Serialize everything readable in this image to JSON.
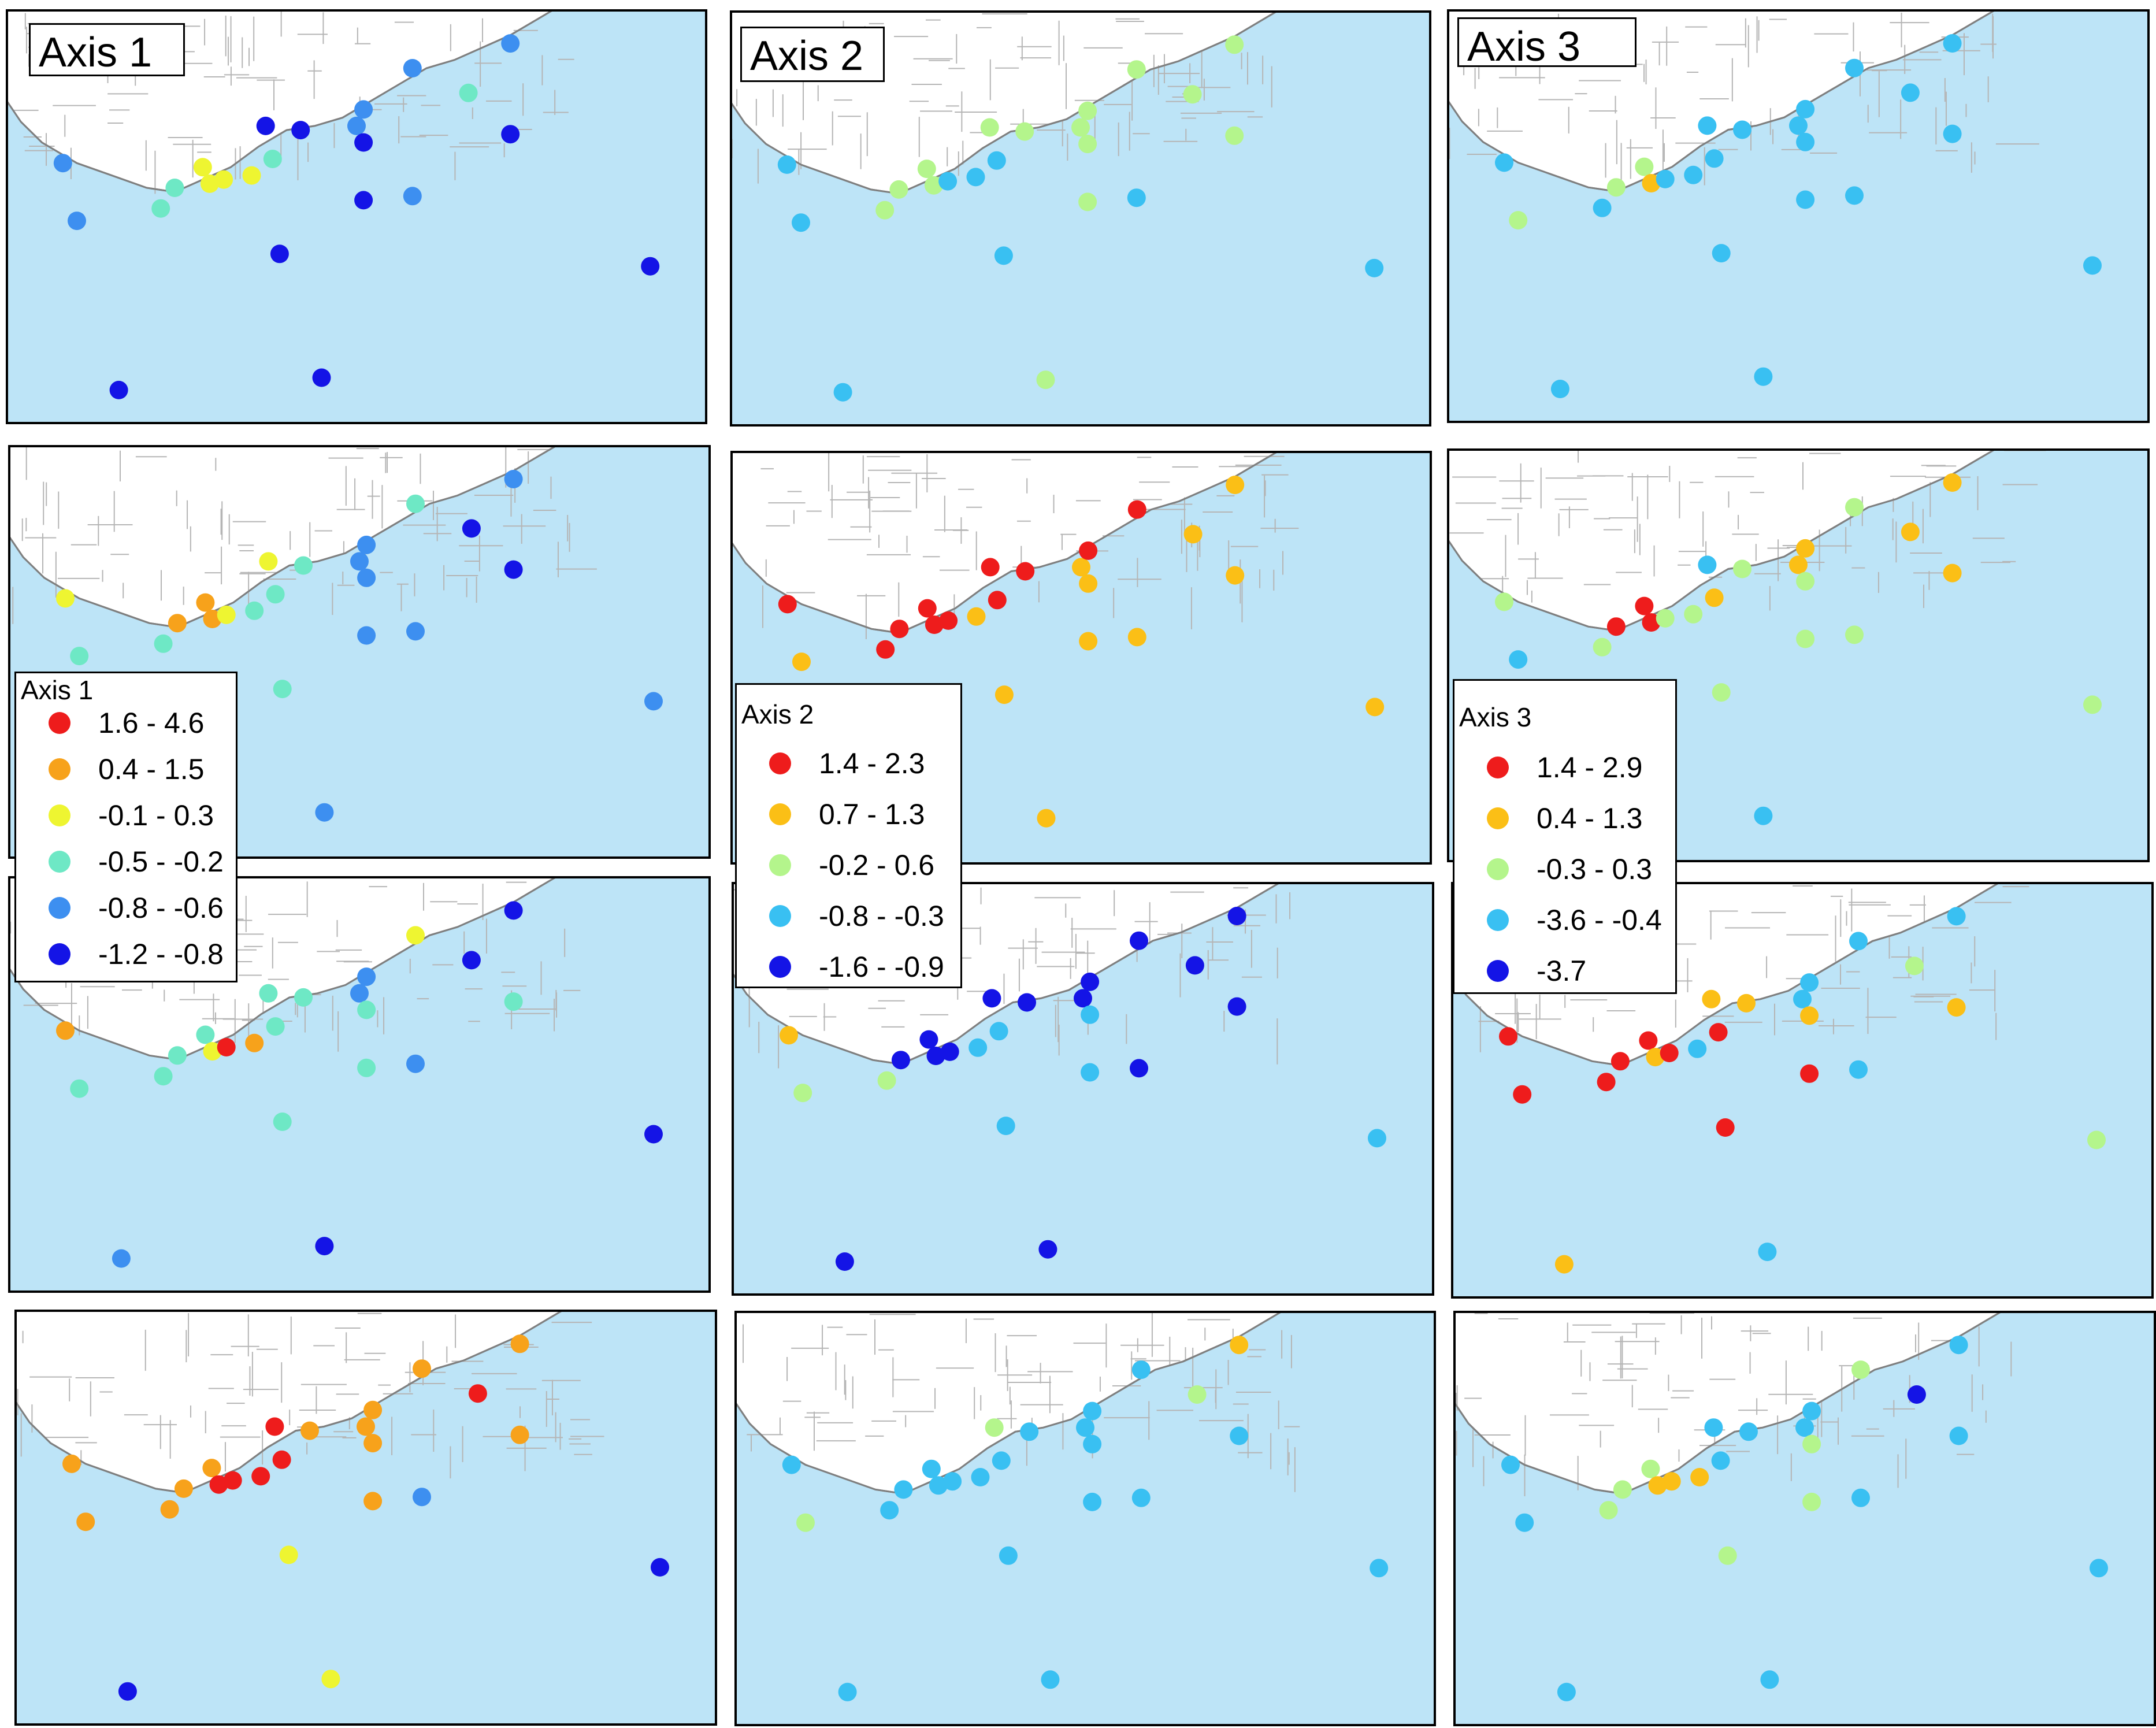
{
  "colors": {
    "water": "#bde4f7",
    "land": "#ffffff",
    "coast": "#7f7f7f",
    "roads": "#b5b5b5",
    "frame": "#000000"
  },
  "axes": [
    {
      "title": "Axis 1",
      "legend": {
        "title": "Axis 1",
        "classes": [
          {
            "label": "1.6 - 4.6",
            "color": "#ee1c1c"
          },
          {
            "label": "0.4 - 1.5",
            "color": "#f7a21b"
          },
          {
            "label": "-0.1 - 0.3",
            "color": "#eef531"
          },
          {
            "label": "-0.5 - -0.2",
            "color": "#6ee8c5"
          },
          {
            "label": "-0.8 - -0.6",
            "color": "#3d8ff0"
          },
          {
            "label": "-1.2 - -0.8",
            "color": "#1414e6"
          }
        ]
      }
    },
    {
      "title": "Axis 2",
      "legend": {
        "title": "Axis 2",
        "classes": [
          {
            "label": "1.4 - 2.3",
            "color": "#ee1c1c"
          },
          {
            "label": "0.7 - 1.3",
            "color": "#fbbf16"
          },
          {
            "label": "-0.2 - 0.6",
            "color": "#b4f58c"
          },
          {
            "label": "-0.8 - -0.3",
            "color": "#39c0f2"
          },
          {
            "label": "-1.6 - -0.9",
            "color": "#1414e6"
          }
        ]
      }
    },
    {
      "title": "Axis 3",
      "legend": {
        "title": "Axis 3",
        "classes": [
          {
            "label": "1.4 - 2.9",
            "color": "#ee1c1c"
          },
          {
            "label": "0.4 - 1.3",
            "color": "#fbbf16"
          },
          {
            "label": "-0.3 - 0.3",
            "color": "#b4f58c"
          },
          {
            "label": "-3.6 - -0.4",
            "color": "#39c0f2"
          },
          {
            "label": "-3.7",
            "color": "#1414e6"
          }
        ]
      }
    }
  ],
  "panels": [
    {
      "row": 0,
      "col": 0,
      "axis": 0,
      "points": [
        [
          5,
          2
        ],
        [
          4,
          2
        ],
        [
          4,
          3
        ],
        [
          4,
          3
        ],
        [
          4,
          3
        ],
        [
          2,
          3
        ],
        [
          2,
          4
        ],
        [
          1,
          3
        ],
        [
          3,
          4
        ],
        [
          4,
          4
        ],
        [
          3,
          4
        ],
        [
          3,
          5
        ],
        [
          5,
          4
        ],
        [
          5,
          4
        ],
        [
          4,
          4
        ],
        [
          4,
          4
        ],
        [
          5,
          4
        ],
        [
          5,
          4
        ],
        [
          5,
          4
        ],
        [
          5,
          4
        ],
        [
          5,
          4
        ],
        [
          5,
          4
        ],
        [
          5,
          4
        ],
        [
          5,
          4
        ]
      ]
    },
    {
      "row": 0,
      "col": 1,
      "axis": 1,
      "points": [
        [
          2,
          3
        ],
        [
          2,
          3
        ],
        [
          2,
          3
        ],
        [
          2,
          3
        ],
        [
          2,
          3
        ],
        [
          2,
          3
        ],
        [
          2,
          3
        ],
        [
          2,
          3
        ],
        [
          2,
          3
        ],
        [
          2,
          3
        ],
        [
          2,
          3
        ],
        [
          2,
          3
        ],
        [
          2,
          3
        ],
        [
          2,
          3
        ],
        [
          2,
          3
        ],
        [
          2,
          3
        ],
        [
          2,
          3
        ],
        [
          2,
          3
        ],
        [
          2,
          3
        ],
        [
          2,
          3
        ],
        [
          2,
          3
        ],
        [
          2,
          3
        ],
        [
          2,
          3
        ],
        [
          2,
          3
        ]
      ]
    },
    {
      "row": 0,
      "col": 2,
      "axis": 2,
      "points": [
        [
          3,
          3
        ],
        [
          3,
          3
        ],
        [
          3,
          3
        ],
        [
          3,
          3
        ],
        [
          3,
          3
        ],
        [
          3,
          3
        ],
        [
          3,
          3
        ],
        [
          3,
          3
        ],
        [
          3,
          3
        ],
        [
          3,
          3
        ],
        [
          3,
          3
        ],
        [
          3,
          3
        ],
        [
          3,
          3
        ],
        [
          3,
          3
        ],
        [
          3,
          3
        ],
        [
          3,
          3
        ],
        [
          3,
          3
        ],
        [
          3,
          3
        ],
        [
          3,
          3
        ],
        [
          3,
          3
        ],
        [
          3,
          3
        ],
        [
          3,
          3
        ],
        [
          3,
          3
        ],
        [
          3,
          3
        ]
      ]
    }
  ]
}
